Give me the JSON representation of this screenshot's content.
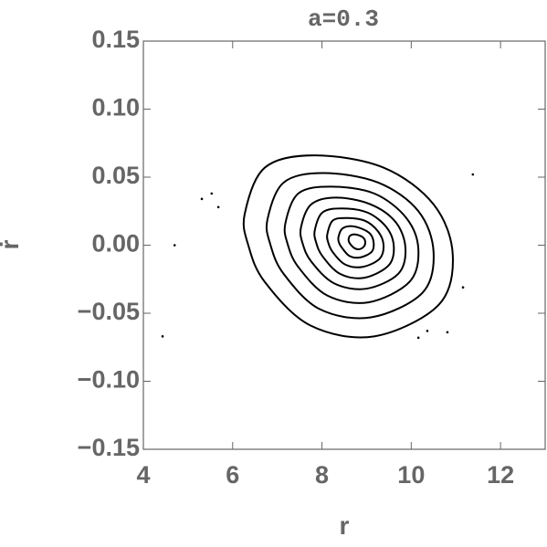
{
  "chart_data": {
    "type": "scatter",
    "title": "a=0.3",
    "x_label": "r",
    "y_label": "ṙ",
    "xlim": [
      4,
      13
    ],
    "ylim": [
      -0.15,
      0.15
    ],
    "xticks": [
      4,
      6,
      8,
      10,
      12
    ],
    "yticks": [
      0.15,
      {
        "value": 0.1,
        "label": "0.10"
      },
      0.05,
      {
        "value": 0,
        "label": "0.00"
      },
      {
        "value": -0.05,
        "label": "−0.05"
      },
      {
        "value": -0.1,
        "label": "−0.10"
      },
      {
        "value": -0.15,
        "label": "−0.15"
      }
    ],
    "color": "#000000",
    "series": [
      {
        "mode": "closed-line",
        "x": [
          6.27,
          6.72,
          7.84,
          9.38,
          10.5,
          10.93,
          10.61,
          9.17,
          7.74,
          6.72,
          6.35
        ],
        "y": [
          0.023,
          0.057,
          0.066,
          0.057,
          0.03,
          -0.007,
          -0.044,
          -0.067,
          -0.059,
          -0.027,
          0.0
        ]
      },
      {
        "mode": "closed-line",
        "x": [
          6.78,
          7.14,
          8.03,
          9.26,
          10.16,
          10.5,
          10.25,
          9.1,
          7.95,
          7.14,
          6.84
        ],
        "y": [
          0.019,
          0.046,
          0.053,
          0.046,
          0.025,
          -0.005,
          -0.035,
          -0.053,
          -0.047,
          -0.021,
          0.001
        ]
      },
      {
        "mode": "closed-line",
        "x": [
          7.18,
          7.47,
          8.19,
          9.17,
          9.89,
          10.16,
          9.96,
          9.04,
          8.12,
          7.47,
          7.23
        ],
        "y": [
          0.016,
          0.038,
          0.043,
          0.038,
          0.02,
          -0.003,
          -0.027,
          -0.042,
          -0.037,
          -0.016,
          0.001
        ]
      },
      {
        "mode": "closed-line",
        "x": [
          7.53,
          7.76,
          8.32,
          9.09,
          9.65,
          9.87,
          9.71,
          8.99,
          8.27,
          7.76,
          7.57
        ],
        "y": [
          0.013,
          0.03,
          0.035,
          0.03,
          0.017,
          -0.002,
          -0.021,
          -0.032,
          -0.028,
          -0.012,
          0.001
        ]
      },
      {
        "mode": "closed-line",
        "x": [
          7.84,
          8.01,
          8.44,
          9.02,
          9.45,
          9.61,
          9.49,
          8.94,
          8.4,
          8.01,
          7.87
        ],
        "y": [
          0.011,
          0.024,
          0.027,
          0.024,
          0.013,
          -0.001,
          -0.015,
          -0.024,
          -0.021,
          -0.008,
          0.002
        ]
      },
      {
        "mode": "closed-line",
        "x": [
          8.12,
          8.24,
          8.54,
          8.96,
          9.26,
          9.38,
          9.29,
          8.9,
          8.51,
          8.24,
          8.14
        ],
        "y": [
          0.008,
          0.018,
          0.02,
          0.018,
          0.01,
          0.0,
          -0.01,
          -0.016,
          -0.014,
          -0.005,
          0.002
        ]
      },
      {
        "mode": "closed-line",
        "x": [
          8.37,
          8.45,
          8.64,
          8.9,
          9.09,
          9.16,
          9.11,
          8.86,
          8.62,
          8.45,
          8.38
        ],
        "y": [
          0.006,
          0.012,
          0.014,
          0.012,
          0.008,
          0.001,
          -0.005,
          -0.009,
          -0.008,
          -0.002,
          0.002
        ]
      },
      {
        "mode": "closed-line",
        "x": [
          8.6,
          8.63,
          8.72,
          8.85,
          8.94,
          8.97,
          8.94,
          8.83,
          8.72,
          8.63,
          8.6
        ],
        "y": [
          0.005,
          0.007,
          0.008,
          0.007,
          0.005,
          0.002,
          -0.001,
          -0.003,
          -0.002,
          0.001,
          0.003
        ]
      },
      {
        "mode": "dots",
        "x": [
          4.7,
          4.43,
          5.31,
          5.53,
          5.68,
          11.38,
          11.16,
          10.16,
          10.36,
          10.81
        ],
        "y": [
          0.0,
          -0.067,
          0.034,
          0.038,
          0.028,
          0.052,
          -0.031,
          -0.068,
          -0.063,
          -0.064
        ]
      }
    ]
  }
}
